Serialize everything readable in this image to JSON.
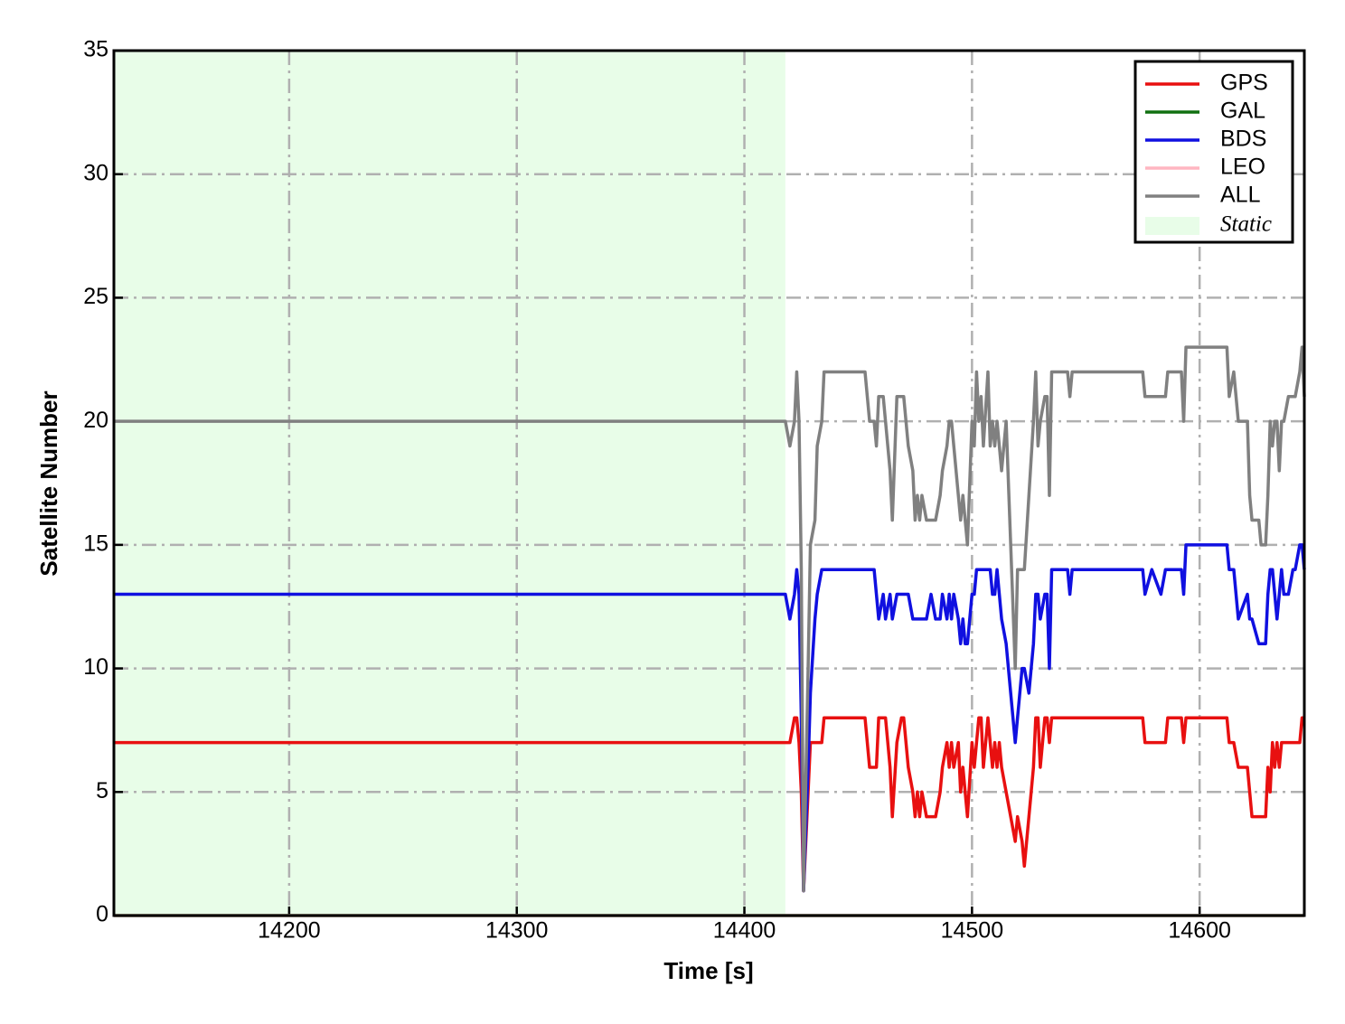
{
  "chart_data": {
    "type": "line",
    "xlabel": "Time [s]",
    "ylabel": "Satellite Number",
    "xlim": [
      14123,
      14646
    ],
    "ylim": [
      0,
      35
    ],
    "xticks": [
      14200,
      14300,
      14400,
      14500,
      14600
    ],
    "yticks": [
      0,
      5,
      10,
      15,
      20,
      25,
      30,
      35
    ],
    "grid": true,
    "legend": "upper right",
    "shade": {
      "label": "Static",
      "xlim": [
        14123,
        14418
      ],
      "color": "#e8fde8"
    },
    "x": [
      14123,
      14418,
      14420,
      14422,
      14423,
      14424,
      14425,
      14426,
      14428,
      14429,
      14431,
      14432,
      14434,
      14435,
      14453,
      14455,
      14457,
      14458,
      14459,
      14461,
      14462,
      14464,
      14465,
      14467,
      14469,
      14470,
      14472,
      14474,
      14475,
      14476,
      14477,
      14478,
      14480,
      14482,
      14484,
      14486,
      14487,
      14489,
      14490,
      14491,
      14492,
      14494,
      14495,
      14496,
      14497,
      14498,
      14500,
      14501,
      14502,
      14503,
      14504,
      14505,
      14507,
      14508,
      14509,
      14510,
      14511,
      14512,
      14513,
      14515,
      14517,
      14519,
      14520,
      14522,
      14523,
      14525,
      14527,
      14528,
      14529,
      14530,
      14532,
      14533,
      14534,
      14535,
      14542,
      14543,
      14544,
      14575,
      14576,
      14579,
      14583,
      14585,
      14586,
      14592,
      14593,
      14594,
      14612,
      14613,
      14615,
      14617,
      14621,
      14622,
      14623,
      14626,
      14627,
      14629,
      14630,
      14631,
      14632,
      14633,
      14634,
      14635,
      14636,
      14637,
      14639,
      14641,
      14642,
      14644,
      14645,
      14646
    ],
    "series": [
      {
        "name": "GPS",
        "color": "#e81010",
        "values": [
          7,
          7,
          7,
          8,
          8,
          7,
          5,
          1,
          5,
          7,
          7,
          7,
          7,
          8,
          8,
          6,
          6,
          6,
          8,
          8,
          8,
          6,
          4,
          7,
          8,
          8,
          6,
          5,
          4,
          5,
          4,
          5,
          4,
          4,
          4,
          5,
          6,
          7,
          6,
          7,
          6,
          7,
          5,
          6,
          5,
          4,
          7,
          6,
          7,
          8,
          8,
          6,
          8,
          7,
          6,
          7,
          6,
          7,
          6,
          5,
          4,
          3,
          4,
          3,
          2,
          4,
          6,
          8,
          8,
          6,
          8,
          8,
          7,
          8,
          8,
          8,
          8,
          8,
          7,
          7,
          7,
          7,
          8,
          8,
          7,
          8,
          8,
          7,
          7,
          6,
          6,
          5,
          4,
          4,
          4,
          4,
          6,
          5,
          7,
          6,
          7,
          6,
          7,
          7,
          7,
          7,
          7,
          7,
          8,
          8
        ]
      },
      {
        "name": "GAL",
        "color": "#107010",
        "values": [
          0,
          0,
          0,
          0,
          0,
          0,
          0,
          0,
          0,
          0,
          0,
          0,
          0,
          0,
          0,
          0,
          0,
          0,
          0,
          0,
          0,
          0,
          0,
          0,
          0,
          0,
          0,
          0,
          0,
          0,
          0,
          0,
          0,
          0,
          0,
          0,
          0,
          0,
          0,
          0,
          0,
          0,
          0,
          0,
          0,
          0,
          0,
          0,
          0,
          0,
          0,
          0,
          0,
          0,
          0,
          0,
          0,
          0,
          0,
          0,
          0,
          0,
          0,
          0,
          0,
          0,
          0,
          0,
          0,
          0,
          0,
          0,
          0,
          0,
          0,
          0,
          0,
          0,
          0,
          0,
          0,
          0,
          0,
          0,
          0,
          0,
          0,
          0,
          0,
          0,
          0,
          0,
          0,
          0,
          0,
          0,
          0,
          0,
          0,
          0,
          0,
          0,
          0,
          0,
          0,
          0,
          0,
          0,
          0,
          0
        ]
      },
      {
        "name": "BDS",
        "color": "#1010e0",
        "values": [
          13,
          13,
          12,
          13,
          14,
          13,
          8,
          1,
          6,
          9,
          12,
          13,
          14,
          14,
          14,
          14,
          14,
          13,
          12,
          13,
          12,
          13,
          12,
          13,
          13,
          13,
          13,
          12,
          12,
          12,
          12,
          12,
          12,
          13,
          12,
          12,
          13,
          12,
          13,
          12,
          13,
          12,
          11,
          12,
          11,
          11,
          13,
          13,
          14,
          14,
          14,
          14,
          14,
          14,
          13,
          13,
          14,
          13,
          12,
          11,
          9,
          7,
          8,
          10,
          10,
          9,
          11,
          13,
          13,
          12,
          13,
          13,
          10,
          14,
          14,
          13,
          14,
          14,
          13,
          14,
          13,
          14,
          14,
          14,
          13,
          15,
          15,
          14,
          14,
          12,
          13,
          12,
          12,
          11,
          11,
          11,
          13,
          14,
          14,
          13,
          12,
          13,
          14,
          13,
          13,
          14,
          14,
          15,
          15,
          14
        ]
      },
      {
        "name": "LEO",
        "color": "#ffb6c1",
        "values": [
          0,
          0,
          0,
          0,
          0,
          0,
          0,
          0,
          0,
          0,
          0,
          0,
          0,
          0,
          0,
          0,
          0,
          0,
          0,
          0,
          0,
          0,
          0,
          0,
          0,
          0,
          0,
          0,
          0,
          0,
          0,
          0,
          0,
          0,
          0,
          0,
          0,
          0,
          0,
          0,
          0,
          0,
          0,
          0,
          0,
          0,
          0,
          0,
          0,
          0,
          0,
          0,
          0,
          0,
          0,
          0,
          0,
          0,
          0,
          0,
          0,
          0,
          0,
          0,
          0,
          0,
          0,
          0,
          0,
          0,
          0,
          0,
          0,
          0,
          0,
          0,
          0,
          0,
          0,
          0,
          0,
          0,
          0,
          0,
          0,
          0,
          0,
          0,
          0,
          0,
          0,
          0,
          0,
          0,
          0,
          0,
          0,
          0,
          0,
          0,
          0,
          0,
          0,
          0,
          0,
          0,
          0,
          0,
          0,
          0
        ]
      },
      {
        "name": "ALL",
        "color": "#808080",
        "values": [
          20,
          20,
          19,
          20,
          22,
          20,
          14,
          1,
          10,
          15,
          16,
          19,
          20,
          22,
          22,
          20,
          20,
          19,
          21,
          21,
          20,
          18,
          16,
          21,
          21,
          21,
          19,
          18,
          16,
          17,
          16,
          17,
          16,
          16,
          16,
          17,
          18,
          19,
          20,
          20,
          19,
          17,
          16,
          17,
          16,
          15,
          20,
          19,
          22,
          20,
          21,
          19,
          22,
          19,
          20,
          19,
          20,
          19,
          18,
          20,
          15,
          10,
          14,
          14,
          14,
          17,
          20,
          22,
          19,
          20,
          21,
          21,
          17,
          22,
          22,
          21,
          22,
          22,
          21,
          21,
          21,
          21,
          22,
          22,
          20,
          23,
          23,
          21,
          22,
          20,
          20,
          17,
          16,
          16,
          15,
          15,
          17,
          20,
          19,
          20,
          20,
          18,
          20,
          20,
          21,
          21,
          21,
          22,
          23,
          21
        ]
      }
    ]
  }
}
